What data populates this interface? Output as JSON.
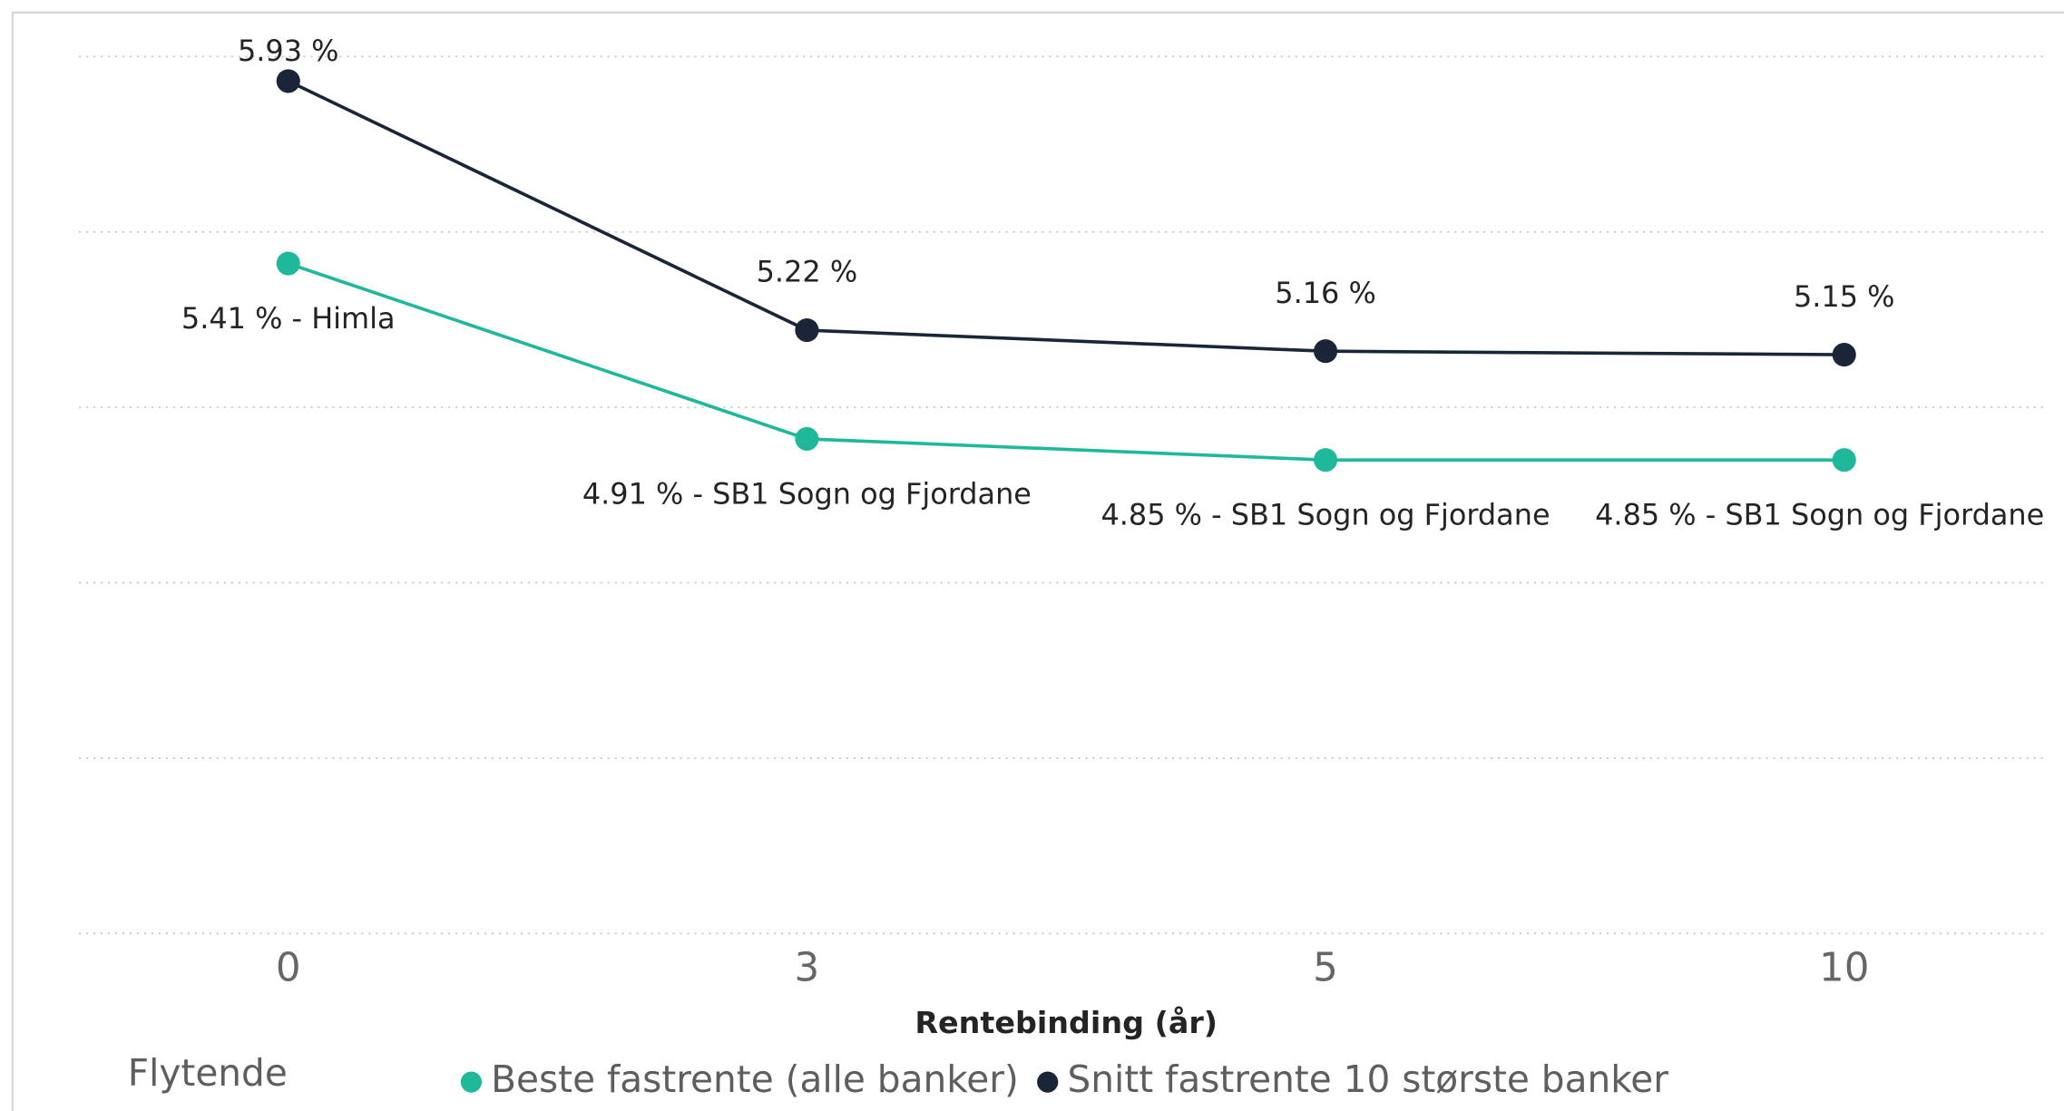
{
  "chart_data": {
    "type": "line",
    "categories": [
      "0",
      "3",
      "5",
      "10"
    ],
    "x_label": "Rentebinding (år)",
    "legend_title": "Flytende",
    "ylim": [
      3.5,
      6.0
    ],
    "yticks": [
      3.5,
      4,
      4.5,
      5,
      5.5,
      6
    ],
    "grid": true,
    "legend": "bottom",
    "series": [
      {
        "name": "Beste fastrente (alle banker)",
        "color": "#1fb89a",
        "values": [
          5.41,
          4.91,
          4.85,
          4.85
        ],
        "value_labels": [
          "5.41 % - Himla",
          "4.91 % - SB1 Sogn og Fjordane",
          "4.85 % - SB1 Sogn og Fjordane",
          "4.85 % - SB1 Sogn og Fjordane"
        ]
      },
      {
        "name": "Snitt fastrente 10 største banker",
        "color": "#1a2638",
        "values": [
          5.93,
          5.22,
          5.16,
          5.15
        ],
        "value_labels": [
          "5.93 %",
          "5.22 %",
          "5.16 %",
          "5.15 %"
        ]
      }
    ]
  }
}
